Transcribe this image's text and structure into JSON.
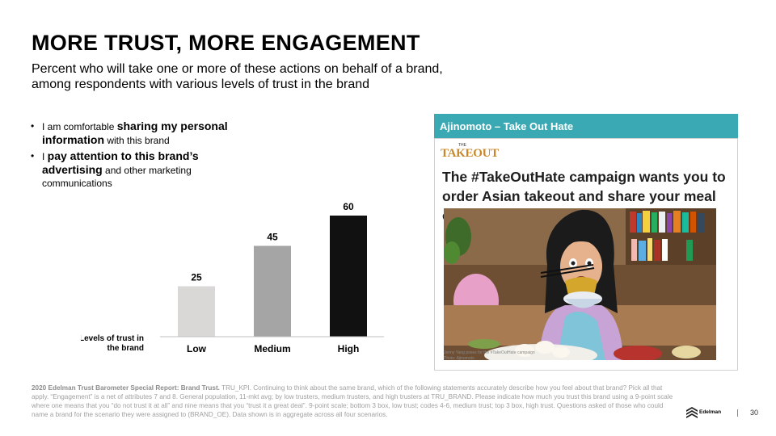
{
  "title": "MORE TRUST, MORE ENGAGEMENT",
  "subtitle": "Percent who will take one or more of these actions on behalf of a brand, among respondents with various levels of trust in the brand",
  "bullets": [
    {
      "pre": "I am comfortable ",
      "em": "sharing my personal information",
      "post": " with this brand"
    },
    {
      "pre": "I ",
      "em": "pay attention to this brand’s advertising",
      "post": " and other marketing communications"
    }
  ],
  "chart_data": {
    "type": "bar",
    "categories": [
      "Low",
      "Medium",
      "High"
    ],
    "values": [
      25,
      45,
      60
    ],
    "xlabel": "Levels of trust in the brand",
    "ylabel": "",
    "ylim": [
      0,
      60
    ],
    "colors": [
      "#d9d8d6",
      "#a5a5a5",
      "#111111"
    ],
    "grid": false
  },
  "panel": {
    "header": "Ajinomoto – Take Out Hate",
    "logo_small": "THE",
    "logo_word": "TAKEOUT",
    "headline": "The #TakeOutHate campaign wants you to order Asian takeout and share your meal online",
    "caption_line1": "Jenny Yang poses for the #TakeOutHate campaign",
    "caption_line2": "Photo: Ajinomoto"
  },
  "footnote": {
    "bold": "2020 Edelman Trust Barometer Special Report: Brand Trust.",
    "text": " TRU_KPI. Continuing to think about the same brand, which of the following statements accurately describe how you feel about that brand? Pick all that apply. “Engagement” is a net of attributes 7 and 8. General population, 11-mkt avg; by low trusters, medium trusters, and high trusters at TRU_BRAND. Please indicate how much you trust this brand using a 9-point scale where one means that you “do not trust it at all” and nine means that you “trust it a great deal”. 9-point scale; bottom 3 box, low trust; codes 4-6, medium trust; top 3 box, high trust. Questions asked of those who could name a brand for the scenario they were assigned to (BRAND_OE). Data shown is in aggregate across all four scenarios."
  },
  "brand_name": "Edelman",
  "page_number": "30"
}
